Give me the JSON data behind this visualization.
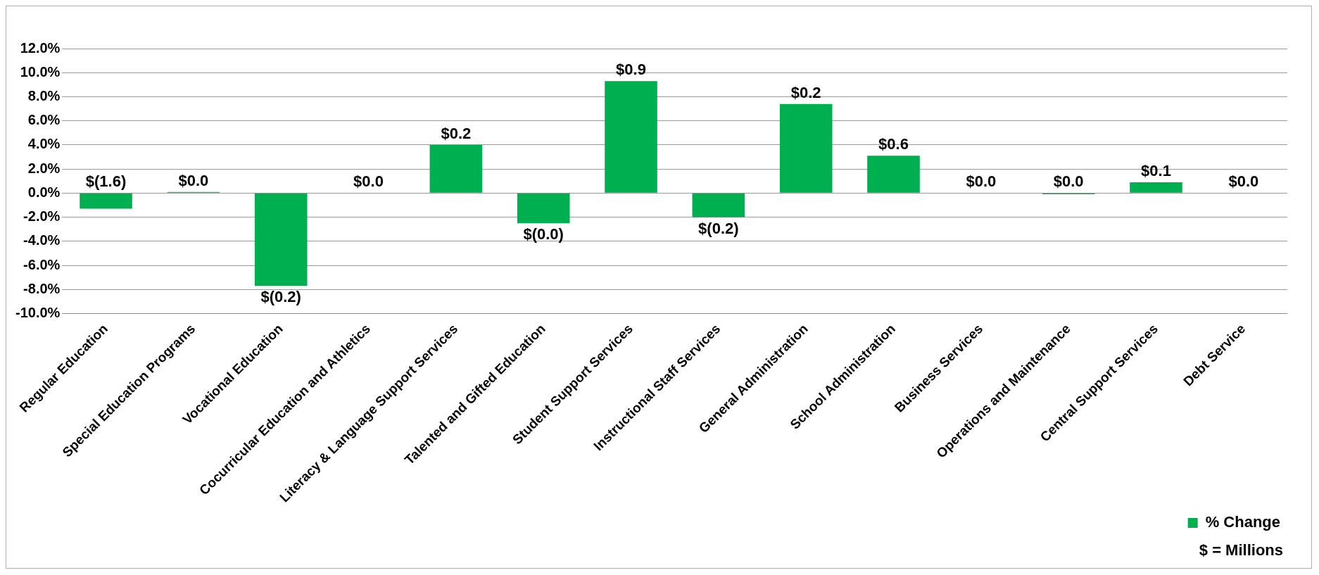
{
  "chart_data": {
    "type": "bar",
    "categories": [
      "Regular Education",
      "Special Education Programs",
      "Vocational Education",
      "Cocurricular Education and Athletics",
      "Literacy & Language Support Services",
      "Talented and Gifted Education",
      "Student Support Services",
      "Instructional Staff Services",
      "General Administration",
      "School Administration",
      "Business Services",
      "Operations and Maintenance",
      "Central Support Services",
      "Debt Service"
    ],
    "series": [
      {
        "name": "% Change",
        "color": "#00b050",
        "values": [
          -1.3,
          0.1,
          -7.7,
          0,
          4.0,
          -2.5,
          9.3,
          -2.0,
          7.4,
          3.1,
          0,
          -0.1,
          0.9,
          0
        ]
      }
    ],
    "ylim": [
      -10,
      12
    ],
    "yticks": [
      {
        "value": -10,
        "label": "-10.0%"
      },
      {
        "value": -8,
        "label": "-8.0%"
      },
      {
        "value": -6,
        "label": "-6.0%"
      },
      {
        "value": -4,
        "label": "-4.0%"
      },
      {
        "value": -2,
        "label": "-2.0%"
      },
      {
        "value": 0,
        "label": "0.0%"
      },
      {
        "value": 2,
        "label": "2.0%"
      },
      {
        "value": 4,
        "label": "4.0%"
      },
      {
        "value": 6,
        "label": "6.0%"
      },
      {
        "value": 8,
        "label": "8.0%"
      },
      {
        "value": 10,
        "label": "10.0%"
      },
      {
        "value": 12,
        "label": "12.0%"
      }
    ],
    "grid": "y",
    "legend": "bottom right",
    "annotations": [
      {
        "text": "$(1.6)",
        "x": "Regular Education",
        "y": 0
      },
      {
        "text": "$0.0",
        "x": "Special Education Programs",
        "y": 0.1
      },
      {
        "text": "$(0.2)",
        "x": "Vocational Education",
        "y": -7.7
      },
      {
        "text": "$0.0",
        "x": "Cocurricular Education and Athletics",
        "y": 0
      },
      {
        "text": "$0.2",
        "x": "Literacy & Language Support Services",
        "y": 4.0
      },
      {
        "text": "$(0.0)",
        "x": "Talented and Gifted Education",
        "y": -2.5
      },
      {
        "text": "$0.9",
        "x": "Student Support Services",
        "y": 9.3
      },
      {
        "text": "$(0.2)",
        "x": "Instructional Staff Services",
        "y": -2.0
      },
      {
        "text": "$0.2",
        "x": "General Administration",
        "y": 7.4
      },
      {
        "text": "$0.6",
        "x": "School Administration",
        "y": 3.1
      },
      {
        "text": "$0.0",
        "x": "Business Services",
        "y": 0
      },
      {
        "text": "$0.0",
        "x": "Operations and Maintenance",
        "y": 0
      },
      {
        "text": "$0.1",
        "x": "Central Support Services",
        "y": 0.9
      },
      {
        "text": "$0.0",
        "x": "Debt Service",
        "y": 0
      },
      "$ = Millions"
    ]
  }
}
